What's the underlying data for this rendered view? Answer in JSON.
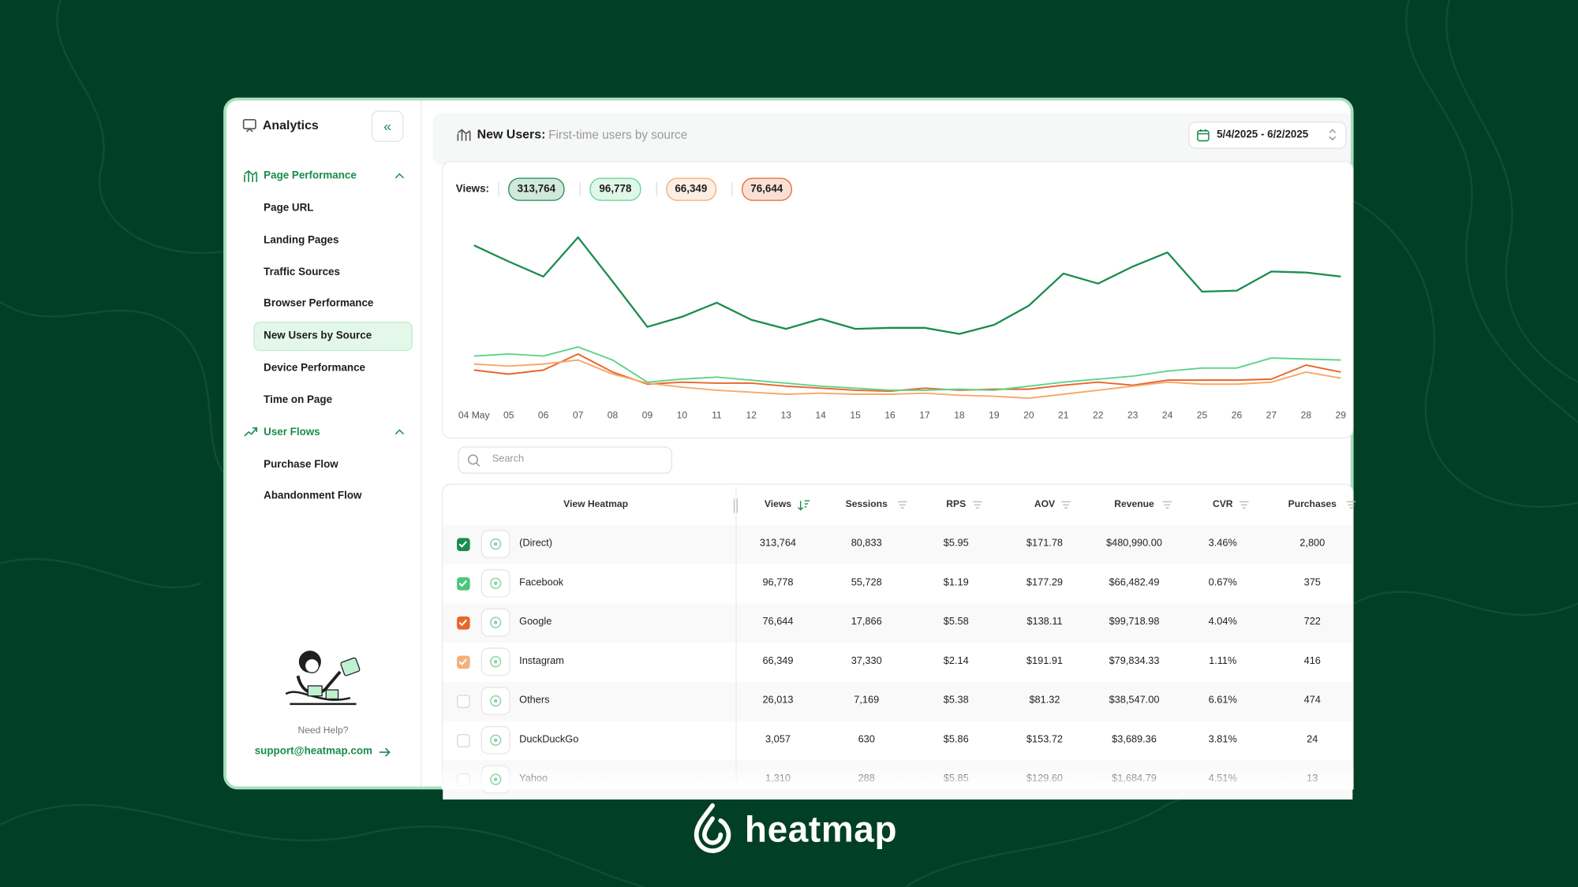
{
  "brand": "heatmap",
  "sidebar": {
    "title": "Analytics",
    "sections": [
      {
        "label": "Page Performance",
        "items": [
          "Page URL",
          "Landing Pages",
          "Traffic Sources",
          "Browser Performance",
          "New Users by Source",
          "Device Performance",
          "Time on Page"
        ]
      },
      {
        "label": "User Flows",
        "items": [
          "Purchase Flow",
          "Abandonment Flow"
        ]
      }
    ],
    "active": {
      "section": 0,
      "item": 4
    },
    "help": "Need Help?",
    "email": "support@heatmap.com"
  },
  "header": {
    "title": "New Users:",
    "subtitle": "First-time users by source",
    "date_range": "5/4/2025 - 6/2/2025"
  },
  "chart": {
    "type": "line",
    "label": "Views:",
    "categories": [
      "04 May",
      "05",
      "06",
      "07",
      "08",
      "09",
      "10",
      "11",
      "12",
      "13",
      "14",
      "15",
      "16",
      "17",
      "18",
      "19",
      "20",
      "21",
      "22",
      "23",
      "24",
      "25",
      "26",
      "27",
      "28",
      "29"
    ],
    "ylim": [
      0,
      20000
    ],
    "series": [
      {
        "name": "313,764",
        "color": "#1a8c4e",
        "values": [
          15600,
          14000,
          12500,
          16400,
          12000,
          7500,
          8500,
          9900,
          8200,
          7300,
          8300,
          7300,
          7400,
          7400,
          6800,
          7700,
          9600,
          12800,
          11800,
          13500,
          14900,
          11000,
          11100,
          13000,
          12900,
          12500
        ]
      },
      {
        "name": "96,778",
        "color": "#5fd38d",
        "values": [
          4600,
          4800,
          4600,
          5500,
          4200,
          2000,
          2300,
          2500,
          2200,
          1900,
          1600,
          1400,
          1200,
          1200,
          1300,
          1200,
          1600,
          2000,
          2300,
          2600,
          3100,
          3400,
          3400,
          4400,
          4300,
          4200
        ]
      },
      {
        "name": "66,349",
        "color": "#f5a96b",
        "values": [
          3800,
          3600,
          3800,
          4200,
          2800,
          1900,
          1500,
          1200,
          1000,
          800,
          900,
          800,
          800,
          900,
          700,
          600,
          400,
          800,
          1200,
          1600,
          2000,
          1800,
          1800,
          2000,
          3000,
          2400
        ]
      },
      {
        "name": "76,644",
        "color": "#e8662a",
        "values": [
          3200,
          2800,
          3200,
          4800,
          3000,
          1800,
          2000,
          1900,
          1900,
          1600,
          1400,
          1200,
          1100,
          1400,
          1200,
          1300,
          1300,
          1700,
          2000,
          1700,
          2200,
          2200,
          2200,
          2300,
          3700,
          3000
        ]
      }
    ]
  },
  "search_placeholder": "Search",
  "table": {
    "columns": [
      "View Heatmap",
      "Views",
      "Sessions",
      "RPS",
      "AOV",
      "Revenue",
      "CVR",
      "Purchases"
    ],
    "sort_column": 1,
    "rows": [
      {
        "checked": true,
        "color": "#1a8c4e",
        "cells": [
          "(Direct)",
          "313,764",
          "80,833",
          "$5.95",
          "$171.78",
          "$480,990.00",
          "3.46%",
          "2,800"
        ]
      },
      {
        "checked": true,
        "color": "#4cc67e",
        "cells": [
          "Facebook",
          "96,778",
          "55,728",
          "$1.19",
          "$177.29",
          "$66,482.49",
          "0.67%",
          "375"
        ]
      },
      {
        "checked": true,
        "color": "#e8662a",
        "cells": [
          "Google",
          "76,644",
          "17,866",
          "$5.58",
          "$138.11",
          "$99,718.98",
          "4.04%",
          "722"
        ]
      },
      {
        "checked": true,
        "color": "#f5b07a",
        "cells": [
          "Instagram",
          "66,349",
          "37,330",
          "$2.14",
          "$191.91",
          "$79,834.33",
          "1.11%",
          "416"
        ]
      },
      {
        "checked": false,
        "cells": [
          "Others",
          "26,013",
          "7,169",
          "$5.38",
          "$81.32",
          "$38,547.00",
          "6.61%",
          "474"
        ]
      },
      {
        "checked": false,
        "cells": [
          "DuckDuckGo",
          "3,057",
          "630",
          "$5.86",
          "$153.72",
          "$3,689.36",
          "3.81%",
          "24"
        ]
      },
      {
        "checked": false,
        "cells": [
          "Yahoo",
          "1,310",
          "288",
          "$5.85",
          "$129.60",
          "$1,684.79",
          "4.51%",
          "13"
        ]
      }
    ]
  }
}
